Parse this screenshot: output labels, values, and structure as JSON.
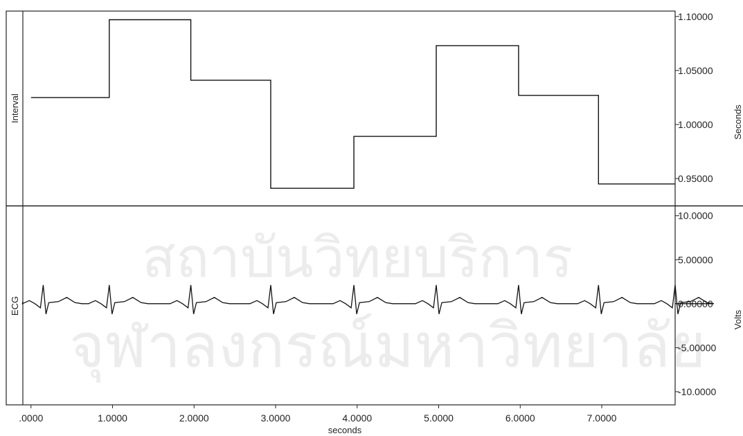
{
  "watermark": {
    "line1": "สถาบันวิทยบริการ",
    "line2": "จุฬาลงกรณ์มหาวิทยาลัย"
  },
  "chart_data": [
    {
      "type": "line",
      "ylabel": "Interval",
      "right_label": "Seconds",
      "ylim": [
        0.925,
        1.105
      ],
      "yticks": [
        {
          "value": 1.1,
          "label": "1.10000"
        },
        {
          "value": 1.05,
          "label": "1.05000"
        },
        {
          "value": 1.0,
          "label": "1.00000"
        },
        {
          "value": 0.95,
          "label": "0.95000"
        }
      ],
      "step": "post",
      "x": [
        0.0,
        0.96,
        1.96,
        2.94,
        3.96,
        4.97,
        5.98,
        6.96,
        7.9
      ],
      "values": [
        1.025,
        1.097,
        1.041,
        0.941,
        0.989,
        1.073,
        1.027,
        0.945,
        0.945
      ]
    },
    {
      "type": "line",
      "ylabel": "ECG",
      "right_label": "Volts",
      "ylim": [
        -11.5,
        11.0
      ],
      "yticks": [
        {
          "value": 10.0,
          "label": "10.0000"
        },
        {
          "value": 5.0,
          "label": "5.00000"
        },
        {
          "value": 0.0,
          "label": "0.00000"
        },
        {
          "value": -5.0,
          "label": "-5.00000"
        },
        {
          "value": -10.0,
          "label": "-10.0000"
        }
      ],
      "baseline": 0.0,
      "r_peaks": [
        0.15,
        0.96,
        1.96,
        2.94,
        3.96,
        4.97,
        5.98,
        6.96,
        7.9
      ]
    }
  ],
  "x_axis": {
    "label": "seconds",
    "xlim": [
      -0.1,
      7.9
    ],
    "ticks": [
      {
        "value": 0,
        "label": ".0000"
      },
      {
        "value": 1,
        "label": "1.0000"
      },
      {
        "value": 2,
        "label": "2.0000"
      },
      {
        "value": 3,
        "label": "3.0000"
      },
      {
        "value": 4,
        "label": "4.0000"
      },
      {
        "value": 5,
        "label": "5.0000"
      },
      {
        "value": 6,
        "label": "6.0000"
      },
      {
        "value": 7,
        "label": "7.0000"
      }
    ]
  }
}
